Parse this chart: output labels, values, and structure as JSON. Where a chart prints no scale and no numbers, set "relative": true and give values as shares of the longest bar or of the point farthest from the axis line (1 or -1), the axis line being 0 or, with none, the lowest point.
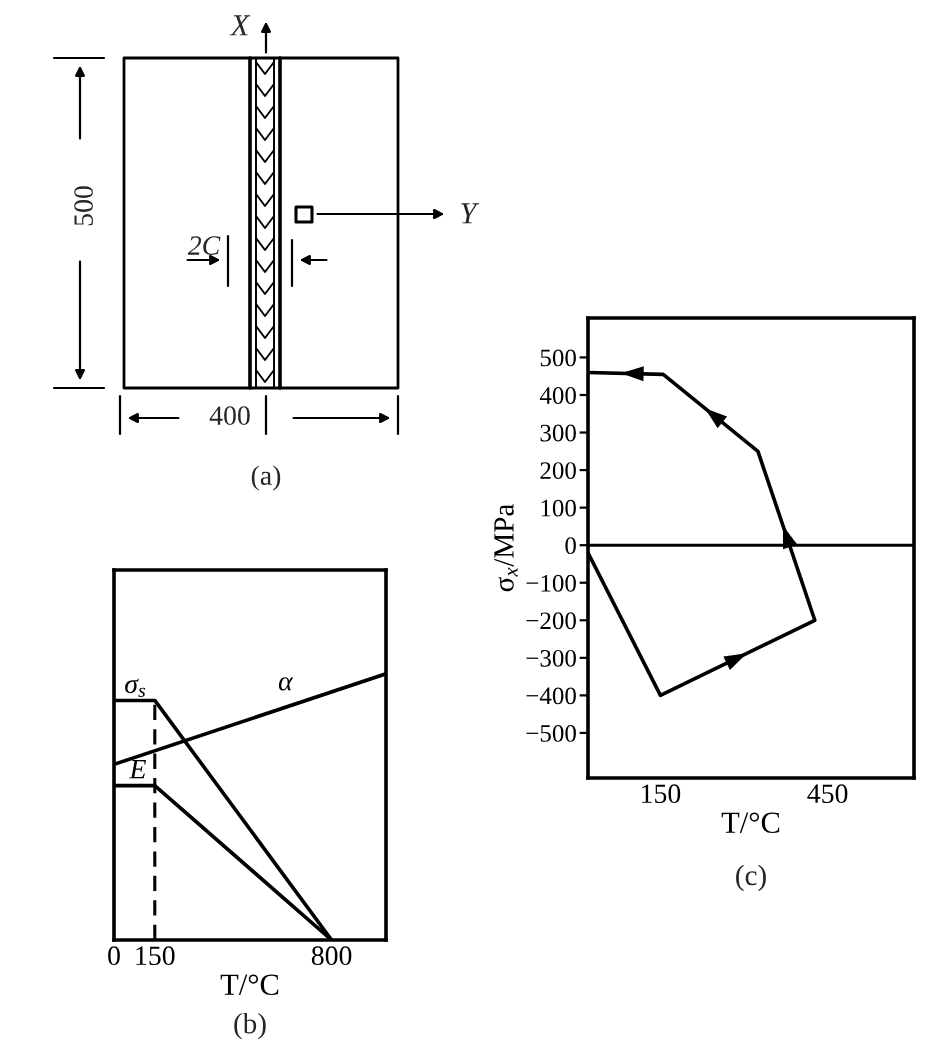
{
  "chart_data": [
    {
      "type": "other",
      "annotations": [
        "X",
        "Y",
        "500",
        "2C",
        "400",
        "(a)"
      ]
    },
    {
      "type": "line",
      "relative": true,
      "xlim": [
        0,
        1000
      ],
      "xticks": [
        0,
        150,
        800
      ],
      "xlabel": "T/°C",
      "tick_labels": "x",
      "series": [
        {
          "name": "σ$_{s}$",
          "color": "#000000",
          "x": [
            0,
            150,
            800
          ],
          "values": [
            0.9,
            0.9,
            0
          ]
        },
        {
          "name": "E",
          "color": "#000000",
          "x": [
            0,
            150,
            800
          ],
          "values": [
            0.58,
            0.58,
            0
          ]
        },
        {
          "name": "α",
          "color": "#000000",
          "x": [
            0,
            1000
          ],
          "values": [
            0.66,
            1
          ]
        }
      ],
      "ref_lines": [
        {
          "axis": "x",
          "value": 150,
          "line_style": "dashed"
        }
      ],
      "annotations": [
        "(b)"
      ]
    },
    {
      "type": "line",
      "xlim": [
        20,
        605
      ],
      "ylim": [
        -620,
        605
      ],
      "xticks": [
        150,
        450
      ],
      "yticks": [
        500,
        400,
        300,
        200,
        100,
        0,
        -100,
        -200,
        -300,
        -400,
        -500
      ],
      "xlabel": "T/°C",
      "ylabel": "σ$_{x}$/MPa",
      "series": [
        {
          "color": "#000000",
          "x": [
            20,
            150,
            427,
            325,
            155,
            20
          ],
          "values": [
            -20,
            -400,
            -200,
            250,
            455,
            460
          ]
        }
      ],
      "ref_lines": [
        {
          "axis": "y",
          "value": 0
        }
      ],
      "annotations": [
        "(c)"
      ]
    }
  ]
}
